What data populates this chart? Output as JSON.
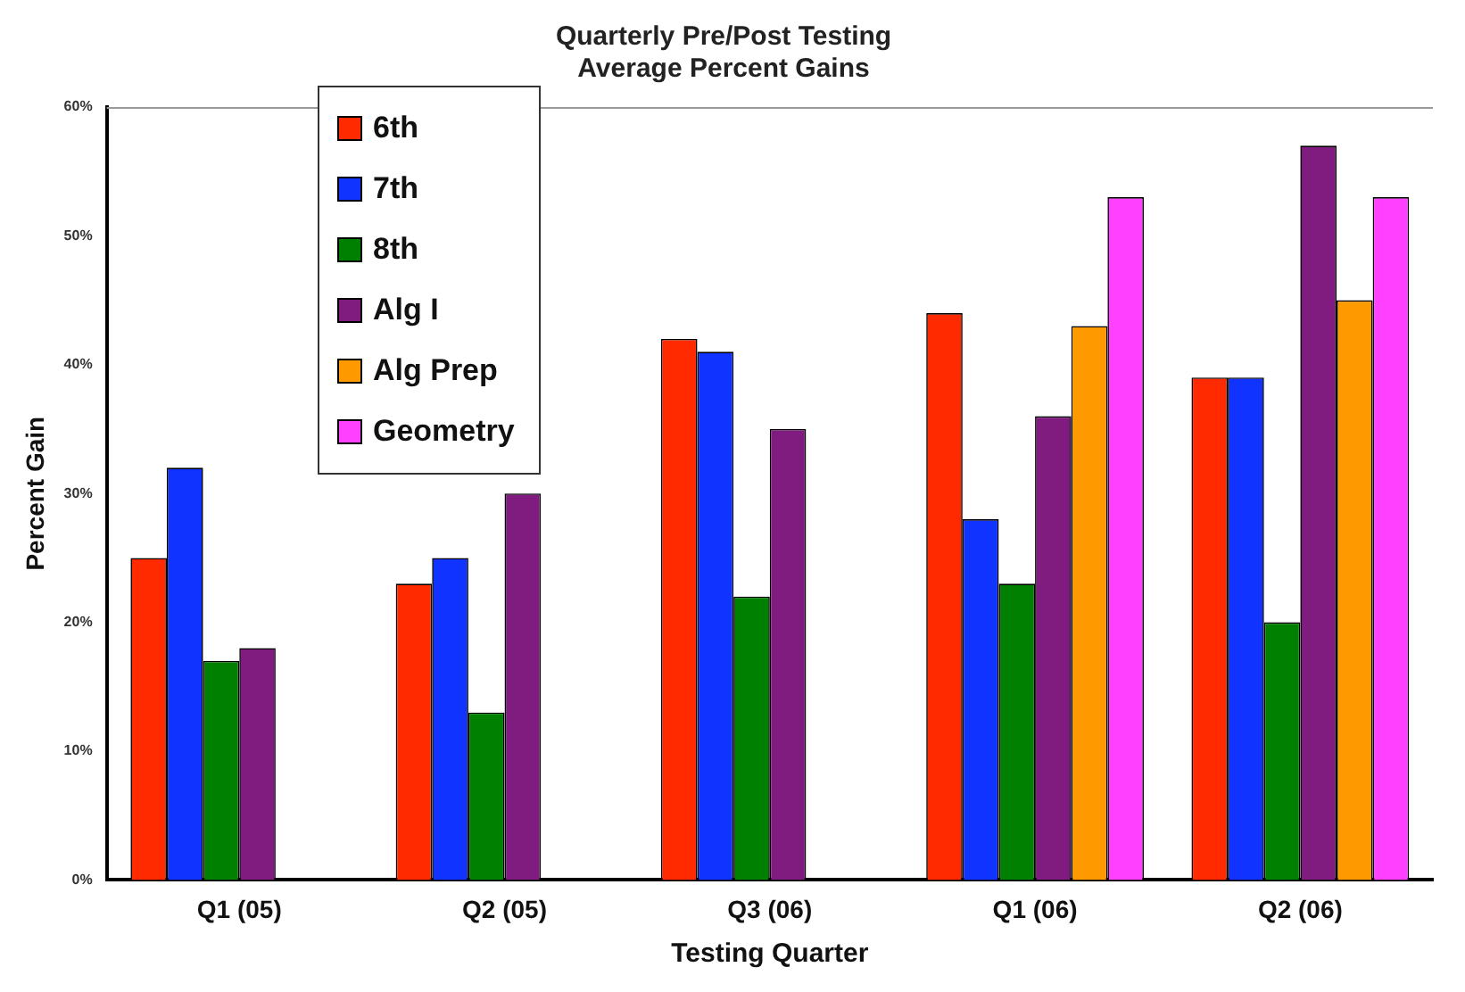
{
  "chart_data": {
    "type": "bar",
    "title": "Quarterly Pre/Post Testing\nAverage Percent Gains",
    "xlabel": "Testing Quarter",
    "ylabel": "Percent Gain",
    "categories": [
      "Q1 (05)",
      "Q2 (05)",
      "Q3 (06)",
      "Q1 (06)",
      "Q2 (06)"
    ],
    "series": [
      {
        "name": "6th",
        "color": "#ff2a00",
        "values": [
          25,
          23,
          42,
          44,
          39
        ]
      },
      {
        "name": "7th",
        "color": "#1133ff",
        "values": [
          32,
          25,
          41,
          28,
          39
        ]
      },
      {
        "name": "8th",
        "color": "#008000",
        "values": [
          17,
          13,
          22,
          23,
          20
        ]
      },
      {
        "name": "Alg I",
        "color": "#801c80",
        "values": [
          18,
          30,
          35,
          36,
          57
        ]
      },
      {
        "name": "Alg Prep",
        "color": "#ff9900",
        "values": [
          null,
          null,
          null,
          43,
          45
        ]
      },
      {
        "name": "Geometry",
        "color": "#ff40ff",
        "values": [
          null,
          null,
          null,
          53,
          53
        ]
      }
    ],
    "ylim": [
      0,
      60
    ],
    "yticks": [
      {
        "value": 0,
        "label": "0%"
      },
      {
        "value": 10,
        "label": "10%"
      },
      {
        "value": 20,
        "label": "20%"
      },
      {
        "value": 30,
        "label": "30%"
      },
      {
        "value": 40,
        "label": "40%"
      },
      {
        "value": 50,
        "label": "50%"
      },
      {
        "value": 60,
        "label": "60%"
      }
    ],
    "grid": false,
    "legend": "top left"
  }
}
